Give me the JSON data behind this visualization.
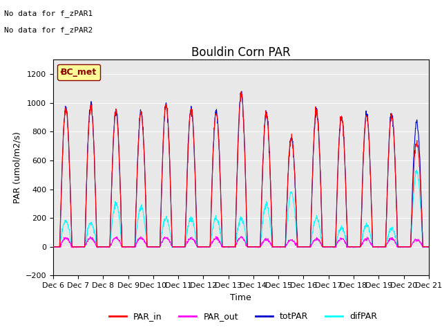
{
  "title": "Bouldin Corn PAR",
  "ylabel": "PAR (umol/m2/s)",
  "xlabel": "Time",
  "no_data_text": [
    "No data for f_zPAR1",
    "No data for f_zPAR2"
  ],
  "legend_label": "BC_met",
  "legend_bg": "#ffff99",
  "legend_border": "#8B0000",
  "ylim": [
    -200,
    1300
  ],
  "yticks": [
    -200,
    0,
    200,
    400,
    600,
    800,
    1000,
    1200
  ],
  "xlim_start": 6,
  "xlim_end": 21,
  "xtick_labels": [
    "Dec 6",
    "Dec 7",
    "Dec 8",
    "Dec 9",
    "Dec 10",
    "Dec 11",
    "Dec 12",
    "Dec 13",
    "Dec 14",
    "Dec 15",
    "Dec 16",
    "Dec 17",
    "Dec 18",
    "Dec 19",
    "Dec 20",
    "Dec 21"
  ],
  "bg_color": "#e8e8e8",
  "series_colors": {
    "PAR_in": "#ff0000",
    "PAR_out": "#ff00ff",
    "totPAR": "#0000cc",
    "difPAR": "#00ffff"
  },
  "num_days": 15,
  "figsize": [
    6.4,
    4.8
  ],
  "dpi": 100
}
